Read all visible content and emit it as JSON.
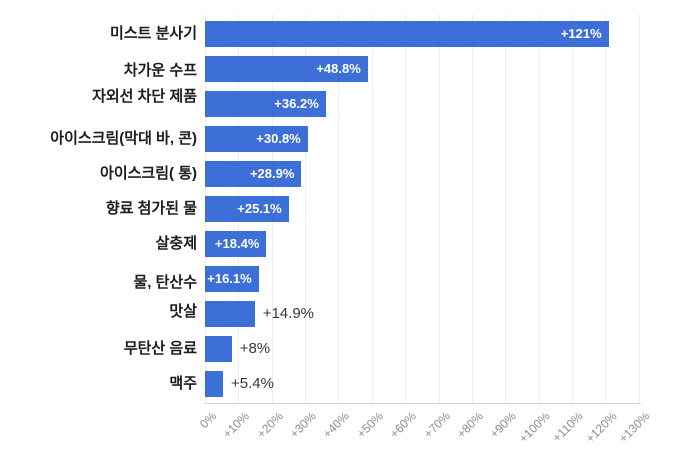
{
  "chart_data": {
    "type": "bar",
    "orientation": "horizontal",
    "title": "",
    "xlabel": "",
    "ylabel": "",
    "categories": [
      "미스트 분사기",
      "차가운 수프",
      "자외선 차단 제품",
      "아이스크림(막대 바, 콘)",
      "아이스크림( 통)",
      "향료 첨가된 물",
      "살충제",
      "물, 탄산수",
      "맛살",
      "무탄산 음료",
      "맥주"
    ],
    "values": [
      121,
      48.8,
      36.2,
      30.8,
      28.9,
      25.1,
      18.4,
      16.1,
      14.9,
      8,
      5.4
    ],
    "value_labels": [
      "+121%",
      "+48.8%",
      "+36.2%",
      "+30.8%",
      "+28.9%",
      "+25.1%",
      "+18.4%",
      "+16.1%",
      "+14.9%",
      "+8%",
      "+5.4%"
    ],
    "value_label_placement": [
      "inside",
      "inside",
      "inside",
      "inside",
      "inside",
      "inside",
      "inside",
      "inside",
      "outside",
      "outside",
      "outside"
    ],
    "xlim": [
      0,
      130
    ],
    "x_tick_step": 10,
    "x_ticks": [
      "0%",
      "+10%",
      "+20%",
      "+30%",
      "+40%",
      "+50%",
      "+60%",
      "+70%",
      "+80%",
      "+90%",
      "+100%",
      "+110%",
      "+120%",
      "+130%"
    ],
    "grid": "vertical",
    "legend": "none",
    "colors": {
      "bar": "#3d6fd8",
      "inside_value_text": "#ffffff",
      "outside_value_text": "#383838",
      "category_text": "#1c1c1c",
      "tick_text": "#8c8c8c",
      "gridline": "#e9e9e9",
      "axis_line": "#d8d8d8",
      "background": "#ffffff"
    }
  }
}
